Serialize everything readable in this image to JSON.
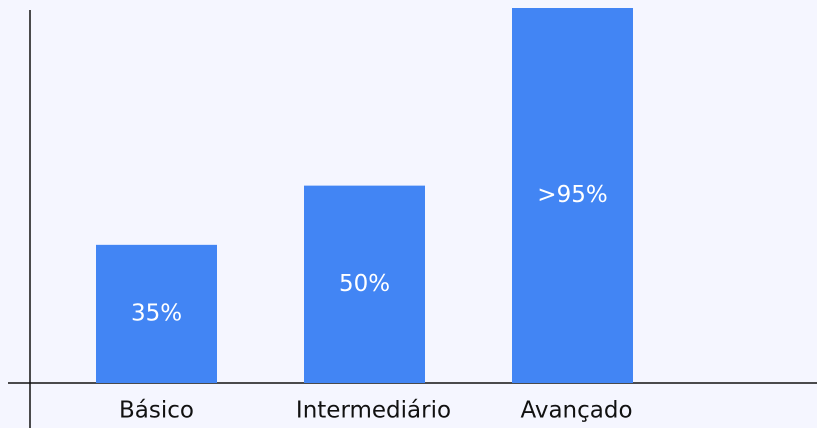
{
  "chart_data": {
    "type": "bar",
    "categories": [
      "Básico",
      "Intermediário",
      "Avançado"
    ],
    "values": [
      35,
      50,
      95
    ],
    "value_labels": [
      "35%",
      "50%",
      ">95%"
    ],
    "color": "#4285f4"
  }
}
